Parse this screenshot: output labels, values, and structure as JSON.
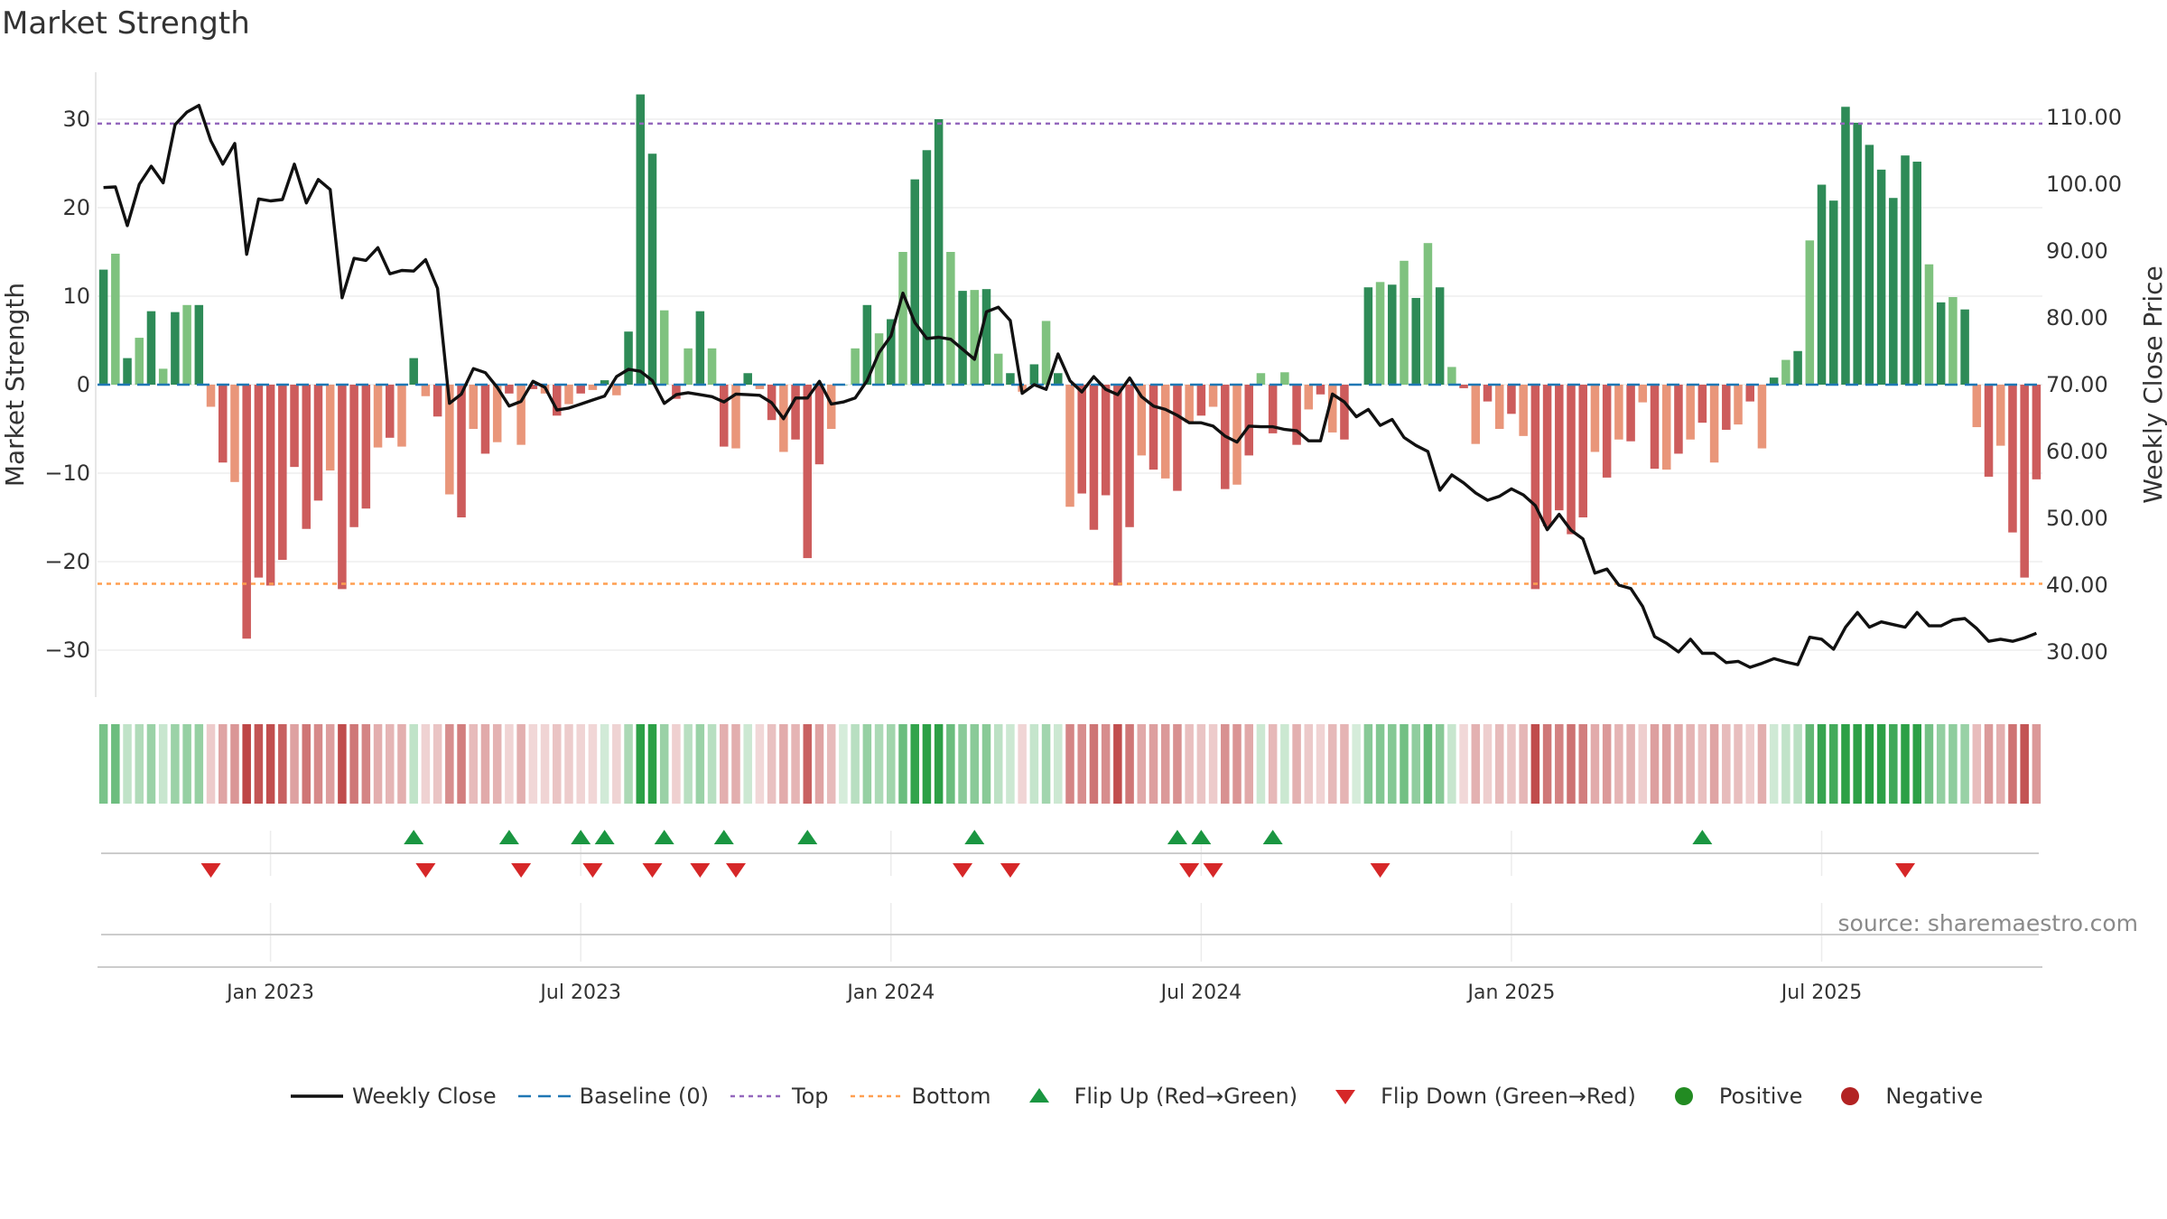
{
  "title": "Market Strength",
  "source_text": "source: sharemaestro.com",
  "chart_data": {
    "type": "bar",
    "left_axis": {
      "label": "Market Strength",
      "ticks": [
        30,
        20,
        10,
        0,
        -10,
        -20,
        -30
      ],
      "tick_labels": [
        "30",
        "20",
        "10",
        "0",
        "−10",
        "−20",
        "−30"
      ],
      "range": [
        -35,
        35
      ]
    },
    "right_axis": {
      "label": "Weekly Close Price",
      "ticks": [
        110,
        100,
        90,
        80,
        70,
        60,
        50,
        40,
        30
      ],
      "tick_labels": [
        "110.00",
        "100.00",
        "90.00",
        "80.00",
        "70.00",
        "60.00",
        "50.00",
        "40.00",
        "30.00"
      ],
      "range": [
        25.5,
        115.0
      ]
    },
    "x_labels": [
      "Jan 2023",
      "Jul 2023",
      "Jan 2024",
      "Jul 2024",
      "Jan 2025",
      "Jul 2025"
    ],
    "top_line": 29.5,
    "bottom_line": -22.5,
    "strength_values": [
      13,
      14.8,
      3,
      5.3,
      8.3,
      1.8,
      8.2,
      9,
      9,
      -2.5,
      -8.8,
      -11,
      -28.7,
      -21.8,
      -22.7,
      -19.8,
      -9.3,
      -16.3,
      -13.1,
      -9.7,
      -23.1,
      -16.1,
      -14,
      -7.1,
      -6,
      -7,
      3,
      -1.3,
      -3.6,
      -12.4,
      -15,
      -5,
      -7.8,
      -6.5,
      -1,
      -6.8,
      -0.5,
      -1,
      -3.5,
      -2.2,
      -1,
      -0.6,
      0.5,
      -1.2,
      6,
      32.8,
      26.1,
      8.4,
      -1.6,
      4.1,
      8.3,
      4.1,
      -7,
      -7.2,
      1.3,
      -0.5,
      -4,
      -7.6,
      -6.2,
      -19.6,
      -9,
      -5,
      0,
      4.1,
      9,
      5.8,
      7.4,
      15,
      23.2,
      26.5,
      30,
      15,
      10.6,
      10.7,
      10.8,
      3.5,
      1.3,
      -0.8,
      2.3,
      7.2,
      1.3,
      -13.8,
      -12.3,
      -16.4,
      -12.5,
      -22.7,
      -16.1,
      -8,
      -9.6,
      -10.6,
      -12,
      -4.3,
      -3.5,
      -2.5,
      -11.8,
      -11.3,
      -8,
      1.3,
      -5.5,
      1.4,
      -6.8,
      -2.8,
      -1.1,
      -5.4,
      -6.2,
      0,
      11,
      11.6,
      11.3,
      14,
      9.8,
      16,
      11,
      2,
      -0.4,
      -6.7,
      -1.9,
      -5,
      -3.3,
      -5.8,
      -23.1,
      -16,
      -14.2,
      -16.9,
      -15,
      -7.6,
      -10.5,
      -6.2,
      -6.4,
      -2,
      -9.5,
      -9.6,
      -7.8,
      -6.2,
      -4.3,
      -8.8,
      -5.1,
      -4.5,
      -1.9,
      -7.2,
      0.8,
      2.8,
      3.8,
      16.3,
      22.6,
      20.8,
      31.4,
      29.6,
      27.1,
      24.3,
      21.1,
      25.9,
      25.2,
      13.6,
      9.3,
      9.9,
      8.5,
      -4.8,
      -10.4,
      -6.9,
      -16.7,
      -21.8,
      -10.7
    ],
    "weekly_close": [
      99.5,
      99.6,
      93.8,
      100,
      102.7,
      100.2,
      108.9,
      110.8,
      111.8,
      106.5,
      103,
      106.1,
      89.5,
      97.8,
      97.5,
      97.7,
      103,
      97.2,
      100.7,
      99.2,
      83,
      88.9,
      88.6,
      90.5,
      86.6,
      87.1,
      87,
      88.7,
      84.4,
      67.2,
      68.6,
      72.4,
      71.8,
      69.6,
      66.8,
      67.5,
      70.5,
      69.6,
      66.2,
      66.5,
      67.1,
      67.7,
      68.3,
      71.2,
      72.3,
      72,
      70.6,
      67.2,
      68.5,
      68.8,
      68.5,
      68.2,
      67.4,
      68.6,
      68.5,
      68.4,
      67.3,
      64.9,
      68,
      68,
      70.5,
      67.1,
      67.4,
      68,
      70.6,
      74.8,
      77.3,
      83.7,
      79.3,
      76.9,
      77.1,
      76.8,
      75.3,
      73.8,
      80.9,
      81.6,
      79.6,
      68.7,
      70,
      69.3,
      74.6,
      70.6,
      68.9,
      71.2,
      69.3,
      68.5,
      71,
      68.2,
      66.8,
      66.3,
      65.4,
      64.3,
      64.3,
      63.8,
      62.3,
      61.4,
      63.8,
      63.7,
      63.7,
      63.3,
      63.1,
      61.6,
      61.6,
      68.6,
      67.4,
      65.2,
      66.3,
      63.9,
      64.8,
      62.1,
      60.9,
      60,
      54.2,
      56.5,
      55.3,
      53.8,
      52.7,
      53.3,
      54.4,
      53.5,
      51.9,
      48.3,
      50.6,
      48.2,
      46.9,
      41.8,
      42.4,
      40,
      39.5,
      36.8,
      32.3,
      31.3,
      30,
      31.9,
      29.8,
      29.8,
      28.4,
      28.6,
      27.7,
      28.3,
      29,
      28.5,
      28.1,
      32.2,
      31.9,
      30.4,
      33.7,
      35.9,
      33.7,
      34.5,
      34.1,
      33.7,
      35.9,
      33.9,
      33.9,
      34.8,
      35,
      33.5,
      31.6,
      31.9,
      31.6,
      32.1,
      32.8
    ],
    "flip_up_weeks": [
      26,
      34,
      40,
      42,
      47,
      52,
      59,
      73,
      90,
      92,
      98,
      134
    ],
    "flip_down_weeks": [
      9,
      27,
      35,
      41,
      46,
      50,
      53,
      72,
      76,
      91,
      93,
      107,
      151
    ],
    "x_label_weeks": [
      14,
      40,
      66,
      92,
      118,
      144
    ],
    "legend": [
      "Weekly Close",
      "Baseline (0)",
      "Top",
      "Bottom",
      "Flip Up (Red→Green)",
      "Flip Down (Green→Red)",
      "Positive",
      "Negative"
    ],
    "colors": {
      "pos_dark": "#2e8b57",
      "pos_light": "#7fc27f",
      "neg_dark": "#cd5c5c",
      "neg_light": "#e9967a",
      "close_line": "#111111",
      "baseline": "#1f77b4",
      "top_line": "#9467bd",
      "bottom_line": "#ff9f50",
      "flip_up": "#1a9641",
      "flip_down": "#d62728",
      "legend_positive": "#228b22",
      "legend_negative": "#b22222"
    }
  }
}
